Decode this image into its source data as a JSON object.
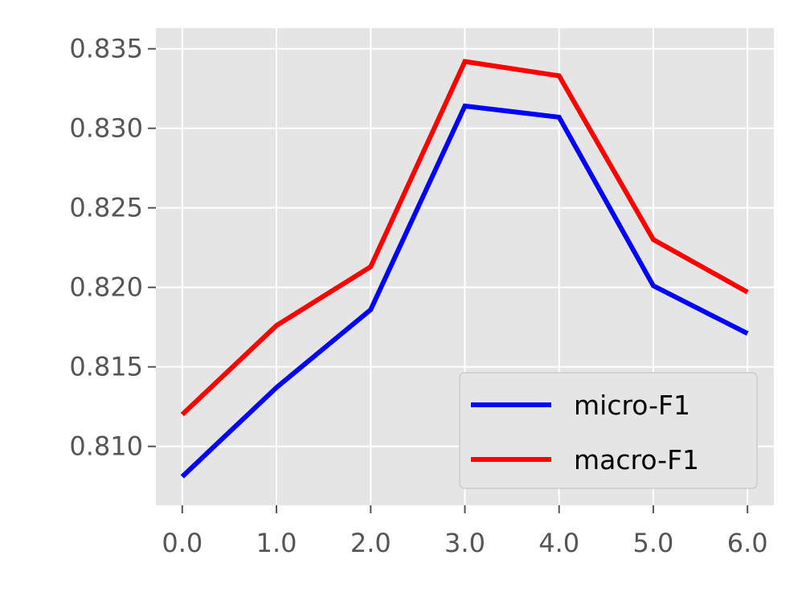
{
  "chart_data": {
    "type": "line",
    "title": "",
    "xlabel": "",
    "ylabel": "",
    "x": [
      0,
      1,
      2,
      3,
      4,
      5,
      6
    ],
    "xticks": [
      "0.0",
      "1.0",
      "2.0",
      "3.0",
      "4.0",
      "5.0",
      "6.0"
    ],
    "yticks": [
      "0.810",
      "0.815",
      "0.820",
      "0.825",
      "0.830",
      "0.835"
    ],
    "xlim": [
      -0.28,
      6.28
    ],
    "ylim": [
      0.8063,
      0.8363
    ],
    "grid": true,
    "legend_position": "lower right",
    "colors": {
      "plot_background": "#e5e5e5",
      "grid": "#ffffff",
      "tick_text": "#555555"
    },
    "series": [
      {
        "name": "micro-F1",
        "color": "#0000ff",
        "values": [
          0.8081,
          0.8137,
          0.8186,
          0.8314,
          0.8307,
          0.8201,
          0.8171
        ]
      },
      {
        "name": "macro-F1",
        "color": "#ff0000",
        "values": [
          0.812,
          0.8176,
          0.8213,
          0.8342,
          0.8333,
          0.823,
          0.8197
        ]
      }
    ]
  }
}
